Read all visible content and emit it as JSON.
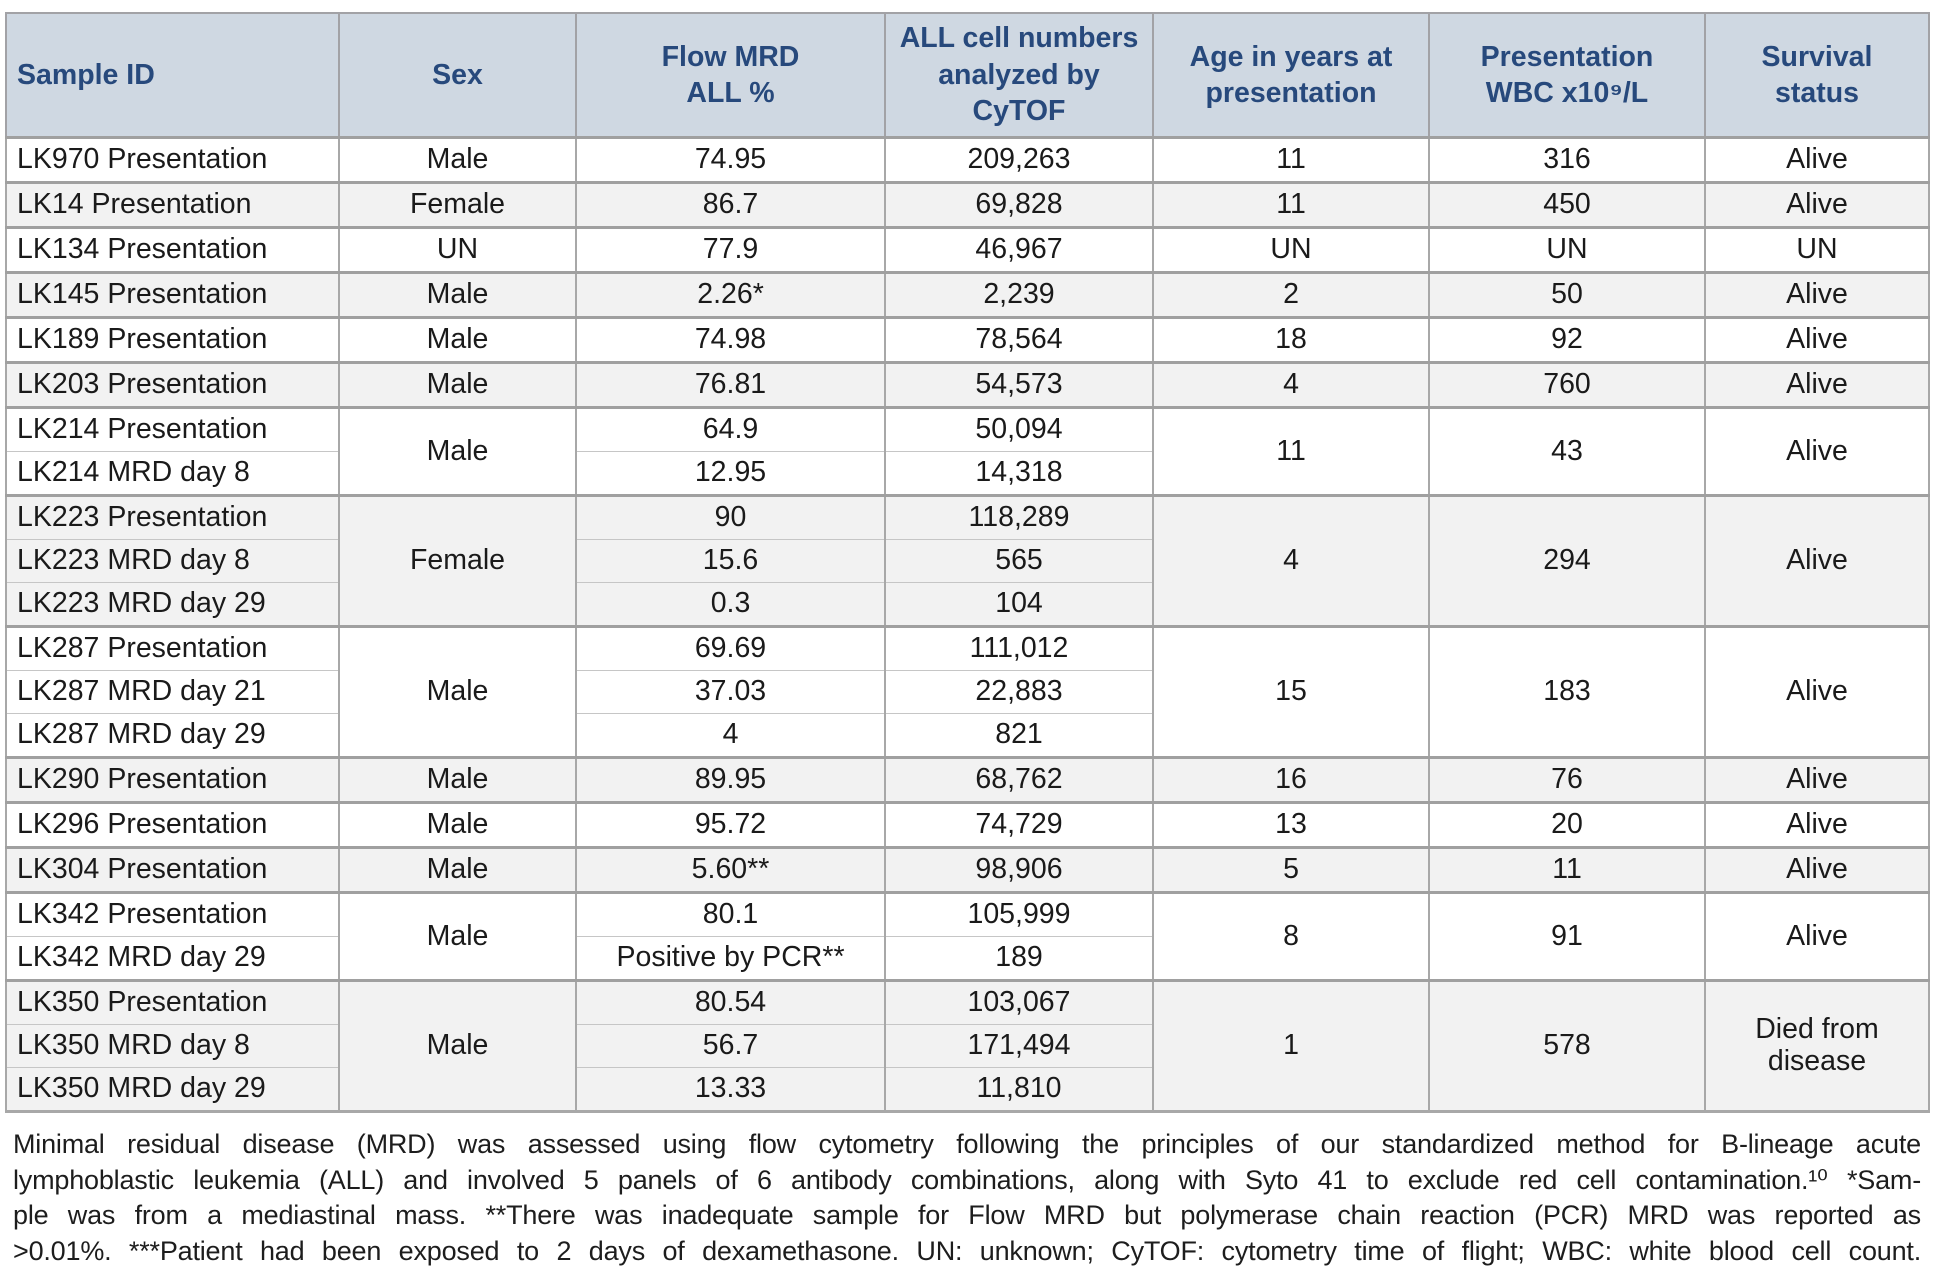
{
  "colors": {
    "header_bg": "#cfd8e2",
    "header_text": "#27497c",
    "shaded_row_bg": "#f2f2f2",
    "border": "#a8a8a8"
  },
  "table": {
    "columns": [
      {
        "label": "Sample ID"
      },
      {
        "label": "Sex"
      },
      {
        "label": "Flow MRD\nALL %"
      },
      {
        "label": "ALL cell numbers\nanalyzed by\nCyTOF"
      },
      {
        "label": "Age in years at\npresentation"
      },
      {
        "label": "Presentation\nWBC x10⁹/L"
      },
      {
        "label": "Survival\nstatus"
      }
    ],
    "groups": [
      {
        "shaded": false,
        "sex": "Male",
        "age": "11",
        "wbc": "316",
        "survival": "Alive",
        "rows": [
          {
            "id": "LK970 Presentation",
            "flow": "74.95",
            "cells": "209,263"
          }
        ]
      },
      {
        "shaded": true,
        "sex": "Female",
        "age": "11",
        "wbc": "450",
        "survival": "Alive",
        "rows": [
          {
            "id": "LK14 Presentation",
            "flow": "86.7",
            "cells": "69,828"
          }
        ]
      },
      {
        "shaded": false,
        "sex": "UN",
        "age": "UN",
        "wbc": "UN",
        "survival": "UN",
        "rows": [
          {
            "id": "LK134 Presentation",
            "flow": "77.9",
            "cells": "46,967"
          }
        ]
      },
      {
        "shaded": true,
        "sex": "Male",
        "age": "2",
        "wbc": "50",
        "survival": "Alive",
        "rows": [
          {
            "id": "LK145 Presentation",
            "flow": "2.26*",
            "cells": "2,239"
          }
        ]
      },
      {
        "shaded": false,
        "sex": "Male",
        "age": "18",
        "wbc": "92",
        "survival": "Alive",
        "rows": [
          {
            "id": "LK189 Presentation",
            "flow": "74.98",
            "cells": "78,564"
          }
        ]
      },
      {
        "shaded": true,
        "sex": "Male",
        "age": "4",
        "wbc": "760",
        "survival": "Alive",
        "rows": [
          {
            "id": "LK203 Presentation",
            "flow": "76.81",
            "cells": "54,573"
          }
        ]
      },
      {
        "shaded": false,
        "sex": "Male",
        "age": "11",
        "wbc": "43",
        "survival": "Alive",
        "rows": [
          {
            "id": "LK214 Presentation",
            "flow": "64.9",
            "cells": "50,094"
          },
          {
            "id": "LK214 MRD day 8",
            "flow": "12.95",
            "cells": "14,318"
          }
        ]
      },
      {
        "shaded": true,
        "sex": "Female",
        "age": "4",
        "wbc": "294",
        "survival": "Alive",
        "rows": [
          {
            "id": "LK223 Presentation",
            "flow": "90",
            "cells": "118,289"
          },
          {
            "id": "LK223 MRD day 8",
            "flow": "15.6",
            "cells": "565"
          },
          {
            "id": "LK223 MRD day 29",
            "flow": "0.3",
            "cells": "104"
          }
        ]
      },
      {
        "shaded": false,
        "sex": "Male",
        "age": "15",
        "wbc": "183",
        "survival": "Alive",
        "rows": [
          {
            "id": "LK287 Presentation",
            "flow": "69.69",
            "cells": "111,012"
          },
          {
            "id": "LK287 MRD day 21",
            "flow": "37.03",
            "cells": "22,883"
          },
          {
            "id": "LK287 MRD day 29",
            "flow": "4",
            "cells": "821"
          }
        ]
      },
      {
        "shaded": true,
        "sex": "Male",
        "age": "16",
        "wbc": "76",
        "survival": "Alive",
        "rows": [
          {
            "id": "LK290 Presentation",
            "flow": "89.95",
            "cells": "68,762"
          }
        ]
      },
      {
        "shaded": false,
        "sex": "Male",
        "age": "13",
        "wbc": "20",
        "survival": "Alive",
        "rows": [
          {
            "id": "LK296 Presentation",
            "flow": "95.72",
            "cells": "74,729"
          }
        ]
      },
      {
        "shaded": true,
        "sex": "Male",
        "age": "5",
        "wbc": "11",
        "survival": "Alive",
        "rows": [
          {
            "id": "LK304 Presentation",
            "flow": "5.60**",
            "cells": "98,906"
          }
        ]
      },
      {
        "shaded": false,
        "sex": "Male",
        "age": "8",
        "wbc": "91",
        "survival": "Alive",
        "rows": [
          {
            "id": "LK342 Presentation",
            "flow": "80.1",
            "cells": "105,999"
          },
          {
            "id": "LK342 MRD day 29",
            "flow": "Positive by PCR**",
            "cells": "189"
          }
        ]
      },
      {
        "shaded": true,
        "sex": "Male",
        "age": "1",
        "wbc": "578",
        "survival": "Died from disease",
        "rows": [
          {
            "id": "LK350 Presentation",
            "flow": "80.54",
            "cells": "103,067"
          },
          {
            "id": "LK350 MRD day 8",
            "flow": "56.7",
            "cells": "171,494"
          },
          {
            "id": "LK350 MRD day 29",
            "flow": "13.33",
            "cells": "11,810"
          }
        ]
      }
    ]
  },
  "footnote": {
    "lines": [
      "Minimal residual disease (MRD) was assessed using flow cytometry following the principles of our standardized method for B-lineage acute",
      "lymphoblastic leukemia (ALL) and involved 5 panels of 6 antibody combinations, along with Syto 41 to exclude red cell contamination.¹⁰ *Sam-",
      "ple was from a mediastinal mass. **There was inadequate sample for Flow MRD but polymerase chain reaction (PCR) MRD was reported as",
      ">0.01%. ***Patient had been exposed to 2 days of dexamethasone. UN: unknown; CyTOF: cytometry time of flight; WBC: white blood cell count."
    ]
  }
}
